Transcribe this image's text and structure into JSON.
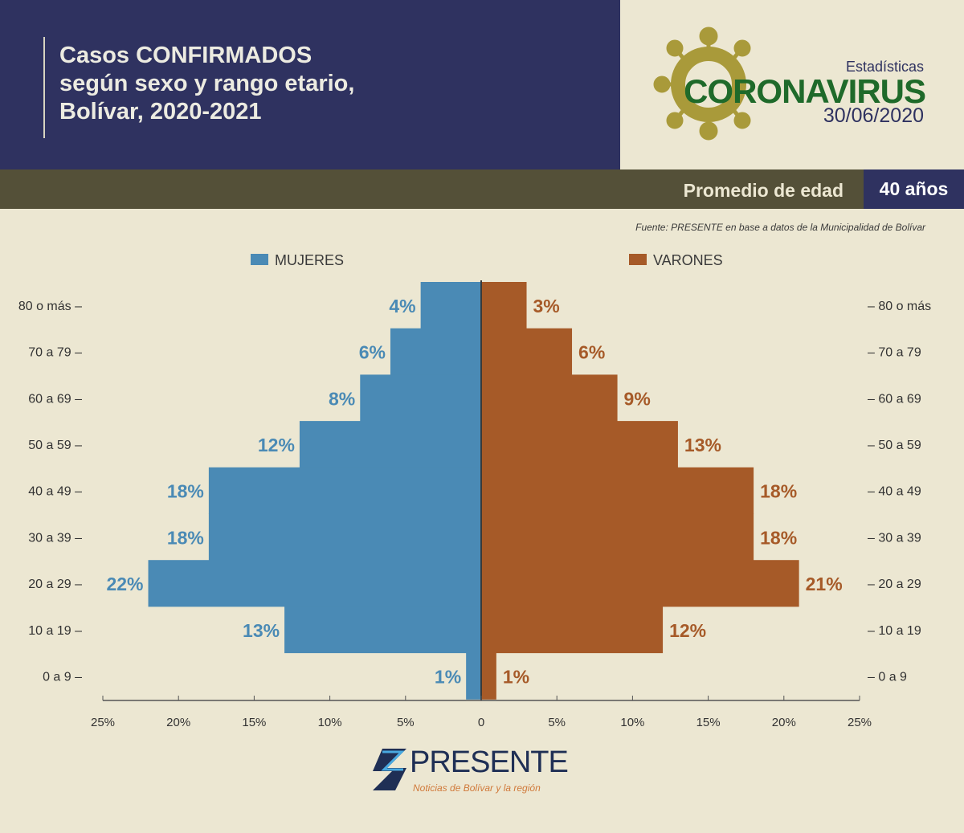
{
  "header": {
    "title_lines": [
      "Casos CONFIRMADOS",
      "según sexo y rango etario,",
      "Bolívar, 2020-2021"
    ]
  },
  "logo": {
    "top": "Estadísticas",
    "main": "CORONAVIRUS",
    "date": "30/06/2020"
  },
  "summary": {
    "label": "Promedio de edad",
    "value": "40 años"
  },
  "source": "Fuente: PRESENTE en base a datos de la Municipalidad de Bolívar",
  "footer": {
    "brand": "PRESENTE",
    "tagline": "Noticias de Bolívar y la región"
  },
  "chart_data": {
    "type": "bar",
    "orientation": "horizontal-pyramid",
    "categories": [
      "80 o más",
      "70 a 79",
      "60 a 69",
      "50 a 59",
      "40 a 49",
      "30 a 39",
      "20 a 29",
      "10 a 19",
      "0 a 9"
    ],
    "series": [
      {
        "name": "MUJERES",
        "color": "#4a8ab5",
        "values": [
          4,
          6,
          8,
          12,
          18,
          18,
          22,
          13,
          1
        ]
      },
      {
        "name": "VARONES",
        "color": "#a65a28",
        "values": [
          3,
          6,
          9,
          13,
          18,
          18,
          21,
          12,
          1
        ]
      }
    ],
    "xticks": [
      "25%",
      "20%",
      "15%",
      "10%",
      "5%",
      "0",
      "5%",
      "10%",
      "15%",
      "20%",
      "25%"
    ],
    "xlim": [
      -25,
      25
    ],
    "legend": "top"
  }
}
